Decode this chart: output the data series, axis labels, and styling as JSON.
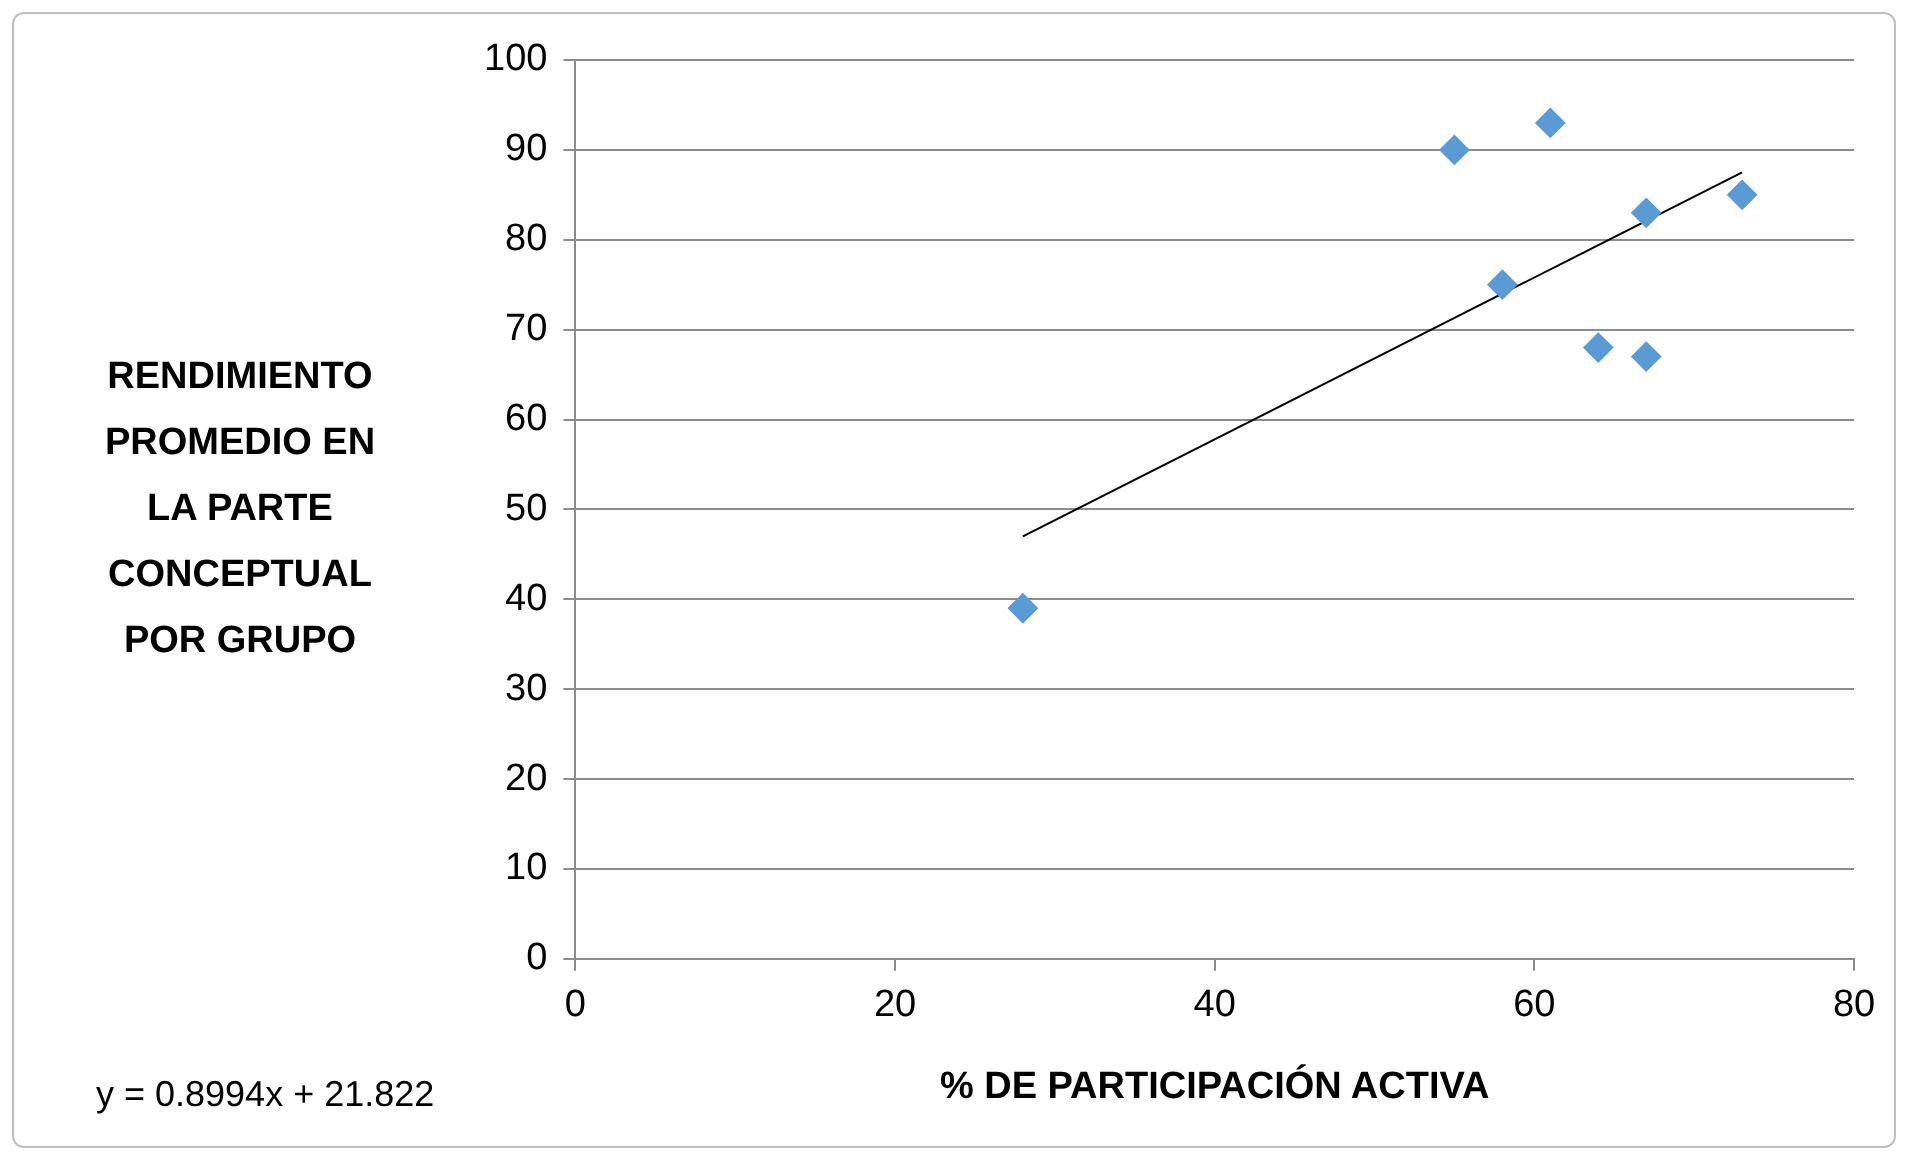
{
  "chart_data": {
    "type": "scatter",
    "xlabel": "% DE PARTICIPACIÓN ACTIVA",
    "ylabel": "RENDIMIENTO PROMEDIO EN LA PARTE CONCEPTUAL POR GRUPO",
    "series": [
      {
        "color": "#5b9bd5",
        "marker": "diamond",
        "x": [
          28,
          55,
          61,
          58,
          67,
          73,
          64,
          67
        ],
        "values": [
          39,
          90,
          93,
          75,
          83,
          85,
          68,
          67
        ]
      },
      {
        "type": "line",
        "color": "#000000",
        "marker": "none",
        "x": [
          28,
          73
        ],
        "values": [
          47.0,
          87.5
        ]
      }
    ],
    "xlim": [
      0,
      80
    ],
    "xticks": [
      0,
      20,
      40,
      60,
      80
    ],
    "ylim": [
      0,
      100
    ],
    "yticks": [
      0,
      10,
      20,
      30,
      40,
      50,
      60,
      70,
      80,
      90,
      100
    ],
    "grid": "y",
    "legend": false,
    "annotations": [
      "y = 0.8994x + 21.822"
    ]
  }
}
